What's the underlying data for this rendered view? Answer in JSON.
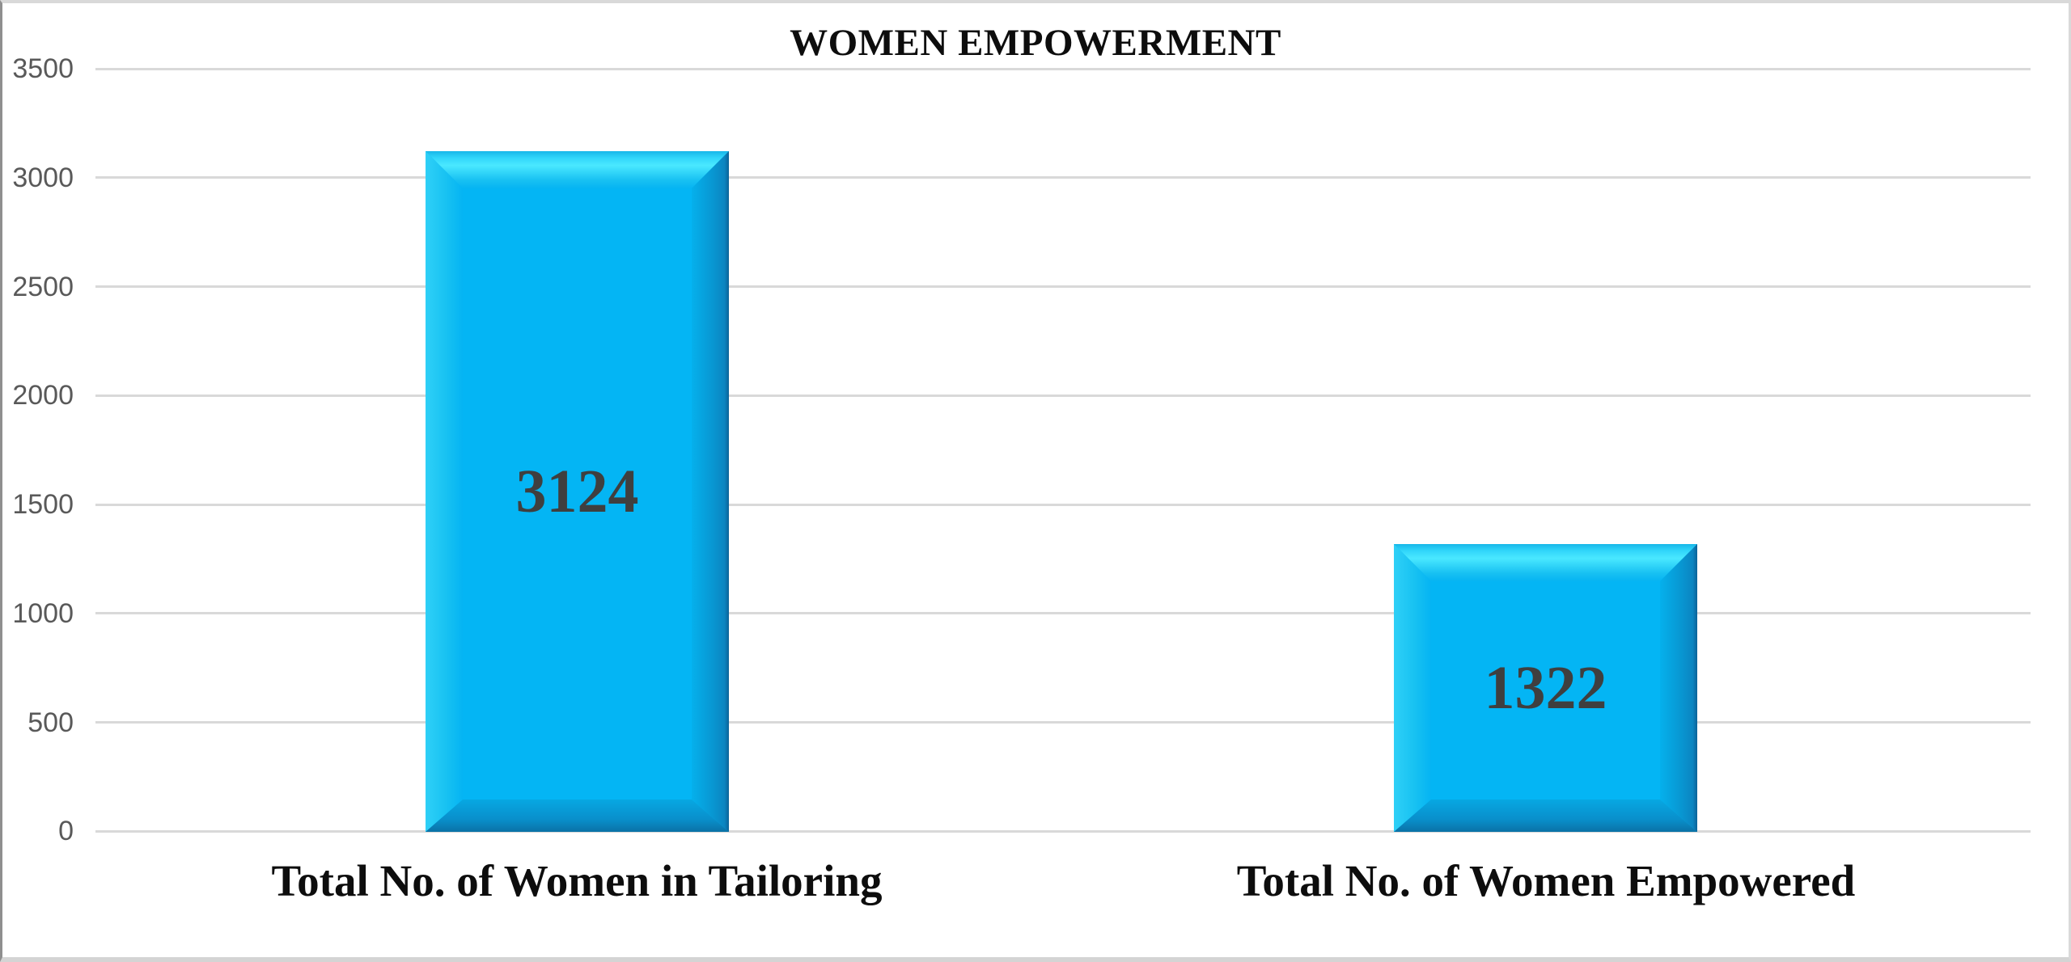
{
  "chart_data": {
    "type": "bar",
    "title": "WOMEN EMPOWERMENT",
    "categories": [
      "Total No. of Women in Tailoring",
      "Total No. of Women Empowered"
    ],
    "values": [
      3124,
      1322
    ],
    "value_labels": [
      "3124",
      "1322"
    ],
    "series": [
      {
        "name": "Women Empowerment",
        "values": [
          3124,
          1322
        ]
      }
    ],
    "yticks": [
      0,
      500,
      1000,
      1500,
      2000,
      2500,
      3000,
      3500
    ],
    "ytick_labels": [
      "0",
      "500",
      "1000",
      "1500",
      "2000",
      "2500",
      "3000",
      "3500"
    ],
    "ylim": [
      0,
      3500
    ],
    "xlabel": "",
    "ylabel": "",
    "grid": true,
    "legend": false,
    "data_labels_position": "center-inside",
    "colors": {
      "bar": "#04b5f4",
      "bar_highlight": "#4ae8ff",
      "bar_shadow": "#0b6398",
      "value_label": "#3f3f3f",
      "tick_label": "#595959",
      "gridline": "#d9d9d9",
      "title": "#0d0d0d",
      "category_label": "#0d0d0d",
      "background": "#ffffff"
    }
  }
}
